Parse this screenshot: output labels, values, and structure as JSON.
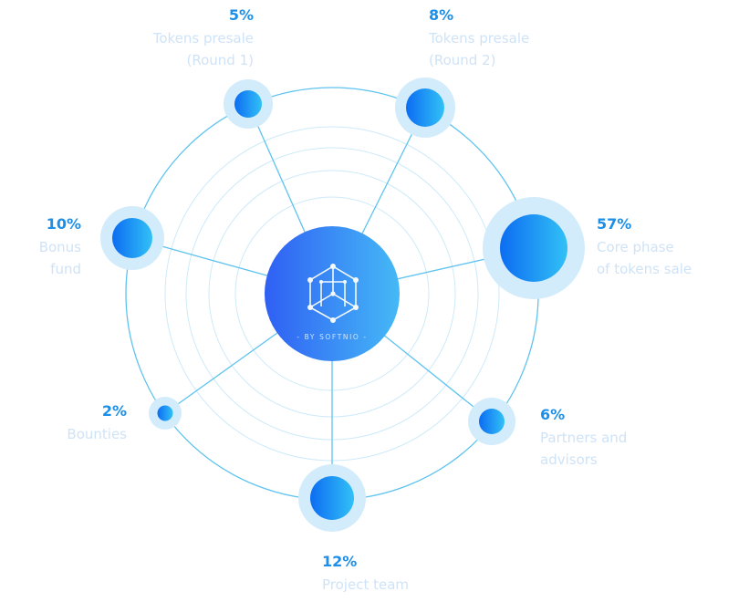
{
  "center": {
    "brand_text": "- BY SOFTNIO -",
    "icon": "network-cube-icon"
  },
  "colors": {
    "ring": "#cdeafa",
    "outer_ring": "#5ec3ef",
    "connector": "#5ec3ef",
    "node_halo": "#d3ecfb",
    "node_start": "#0c6cf2",
    "node_end": "#32c1f6",
    "hub_start": "#2f5ff4",
    "hub_end": "#45b9f6",
    "percent_text": "#1c8fe8",
    "label_text": "#cfe3f7"
  },
  "chart_data": {
    "type": "pie",
    "categories": [
      "Tokens presale (Round 1)",
      "Tokens presale (Round 2)",
      "Core phase of tokens sale",
      "Partners and advisors",
      "Project team",
      "Bounties",
      "Bonus fund"
    ],
    "values": [
      5,
      8,
      57,
      6,
      12,
      2,
      10
    ]
  },
  "segments": [
    {
      "percent": "5%",
      "lines": [
        "Tokens presale",
        "(Round 1)"
      ]
    },
    {
      "percent": "8%",
      "lines": [
        "Tokens presale",
        "(Round 2)"
      ]
    },
    {
      "percent": "57%",
      "lines": [
        "Core phase",
        "of tokens sale"
      ]
    },
    {
      "percent": "6%",
      "lines": [
        "Partners and",
        "advisors"
      ]
    },
    {
      "percent": "12%",
      "lines": [
        "Project team"
      ]
    },
    {
      "percent": "2%",
      "lines": [
        "Bounties"
      ]
    },
    {
      "percent": "10%",
      "lines": [
        "Bonus",
        "fund"
      ]
    }
  ]
}
